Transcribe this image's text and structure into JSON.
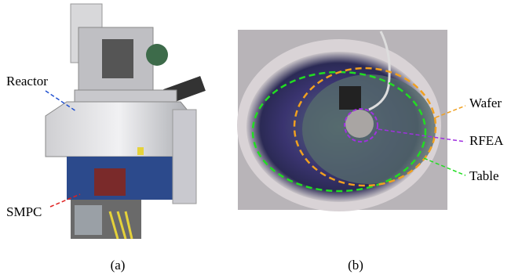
{
  "panels": [
    {
      "caption": "(a)",
      "labels": [
        "Reactor",
        "SMPC"
      ]
    },
    {
      "caption": "(b)",
      "labels": [
        "Wafer",
        "RFEA",
        "Table"
      ]
    }
  ]
}
